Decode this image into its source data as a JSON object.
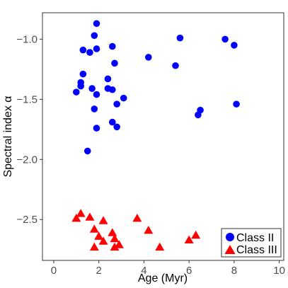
{
  "chart_data": {
    "type": "scatter",
    "title": "",
    "xlabel": "Age (Myr)",
    "ylabel": "Spectral index α",
    "xlim": [
      -0.5,
      10.2
    ],
    "ylim": [
      -2.84,
      -0.78
    ],
    "xticks": [
      0,
      2,
      4,
      6,
      8,
      10
    ],
    "yticks": [
      -1.0,
      -1.5,
      -2.0,
      -2.5
    ],
    "xtick_labels": [
      "0",
      "2",
      "4",
      "6",
      "8",
      "10"
    ],
    "ytick_labels": [
      "−1.0",
      "−1.5",
      "−2.0",
      "−2.5"
    ],
    "grid": false,
    "legend_position": "bottom-right",
    "series": [
      {
        "name": "Class II",
        "marker": "circle",
        "color": "#0000ff",
        "points": [
          [
            1.9,
            -0.87
          ],
          [
            1.8,
            -0.97
          ],
          [
            1.3,
            -1.09
          ],
          [
            1.9,
            -1.08
          ],
          [
            1.6,
            -1.11
          ],
          [
            2.6,
            -1.06
          ],
          [
            5.6,
            -0.99
          ],
          [
            7.6,
            -1.0
          ],
          [
            8.0,
            -1.05
          ],
          [
            4.2,
            -1.15
          ],
          [
            2.7,
            -1.2
          ],
          [
            5.4,
            -1.22
          ],
          [
            1.3,
            -1.29
          ],
          [
            1.2,
            -1.36
          ],
          [
            1.2,
            -1.39
          ],
          [
            2.4,
            -1.33
          ],
          [
            2.4,
            -1.41
          ],
          [
            2.6,
            -1.42
          ],
          [
            1.7,
            -1.41
          ],
          [
            1.0,
            -1.44
          ],
          [
            1.9,
            -1.46
          ],
          [
            3.1,
            -1.49
          ],
          [
            2.8,
            -1.54
          ],
          [
            1.8,
            -1.58
          ],
          [
            8.1,
            -1.54
          ],
          [
            6.5,
            -1.59
          ],
          [
            6.4,
            -1.63
          ],
          [
            2.6,
            -1.69
          ],
          [
            1.9,
            -1.74
          ],
          [
            2.8,
            -1.73
          ],
          [
            1.5,
            -1.93
          ]
        ]
      },
      {
        "name": "Class III",
        "marker": "triangle",
        "color": "#ff0000",
        "points": [
          [
            1.2,
            -2.45
          ],
          [
            1.0,
            -2.49
          ],
          [
            1.6,
            -2.48
          ],
          [
            2.2,
            -2.51
          ],
          [
            3.7,
            -2.49
          ],
          [
            1.8,
            -2.58
          ],
          [
            2.6,
            -2.61
          ],
          [
            4.2,
            -2.59
          ],
          [
            2.0,
            -2.64
          ],
          [
            6.3,
            -2.63
          ],
          [
            2.2,
            -2.68
          ],
          [
            6.0,
            -2.67
          ],
          [
            2.7,
            -2.66
          ],
          [
            2.9,
            -2.71
          ],
          [
            1.8,
            -2.73
          ],
          [
            2.7,
            -2.73
          ],
          [
            4.7,
            -2.73
          ]
        ]
      }
    ]
  }
}
